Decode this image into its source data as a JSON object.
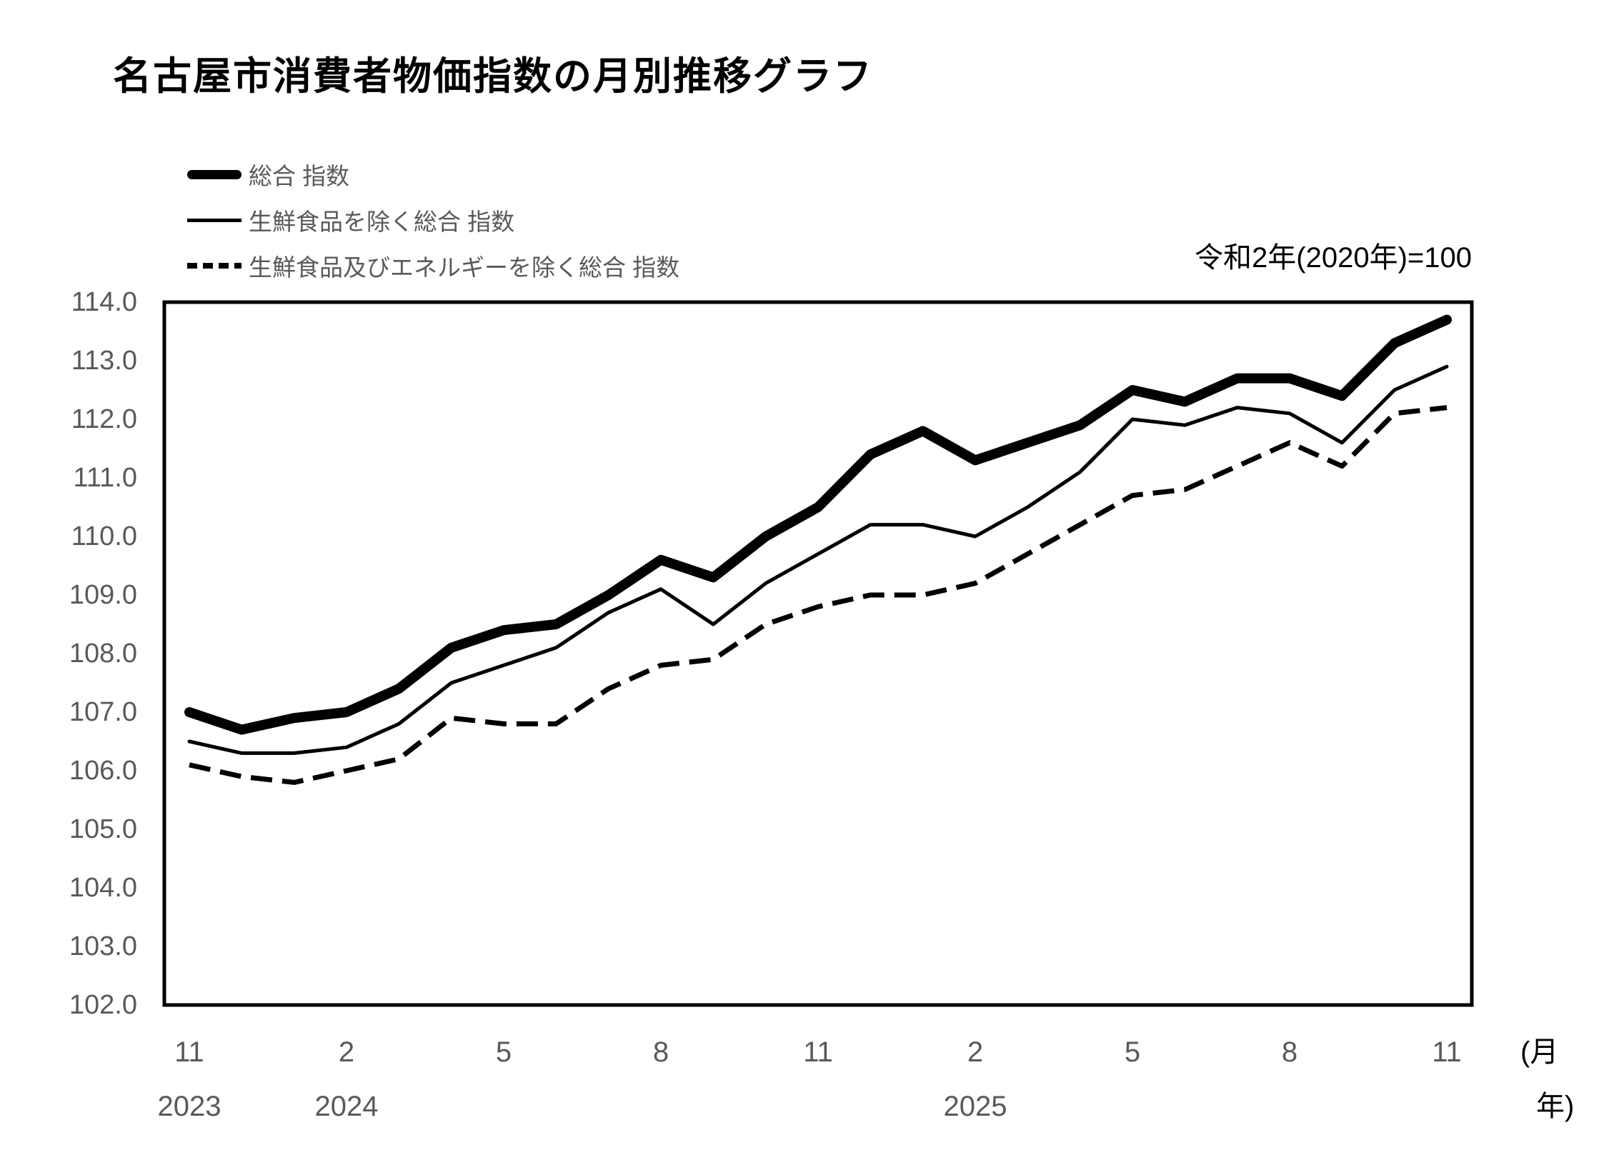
{
  "chart_data": {
    "type": "line",
    "title": "名古屋市消費者物価指数の月別推移グラフ",
    "base_index_note": "令和2年(2020年)=100",
    "x_months": [
      "2023-11",
      "2023-12",
      "2024-01",
      "2024-02",
      "2024-03",
      "2024-04",
      "2024-05",
      "2024-06",
      "2024-07",
      "2024-08",
      "2024-09",
      "2024-10",
      "2024-11",
      "2024-12",
      "2025-01",
      "2025-02",
      "2025-03",
      "2025-04",
      "2025-05",
      "2025-06",
      "2025-07",
      "2025-08",
      "2025-09",
      "2025-10",
      "2025-11"
    ],
    "series": [
      {
        "name": "総合 指数",
        "style": "thick",
        "values": [
          107.0,
          106.7,
          106.9,
          107.0,
          107.4,
          108.1,
          108.4,
          108.5,
          109.0,
          109.6,
          109.3,
          110.0,
          110.5,
          111.4,
          111.8,
          111.3,
          111.6,
          111.9,
          112.5,
          112.3,
          112.7,
          112.7,
          112.4,
          113.3,
          113.7
        ]
      },
      {
        "name": "生鮮食品を除く総合 指数",
        "style": "thin",
        "values": [
          106.5,
          106.3,
          106.3,
          106.4,
          106.8,
          107.5,
          107.8,
          108.1,
          108.7,
          109.1,
          108.5,
          109.2,
          109.7,
          110.2,
          110.2,
          110.0,
          110.5,
          111.1,
          112.0,
          111.9,
          112.2,
          112.1,
          111.6,
          112.5,
          112.9
        ]
      },
      {
        "name": "生鮮食品及びエネルギーを除く総合 指数",
        "style": "dashed",
        "values": [
          106.1,
          105.9,
          105.8,
          106.0,
          106.2,
          106.9,
          106.8,
          106.8,
          107.4,
          107.8,
          107.9,
          108.5,
          108.8,
          109.0,
          109.0,
          109.2,
          109.7,
          110.2,
          110.7,
          110.8,
          111.2,
          111.6,
          111.2,
          112.1,
          112.2
        ]
      }
    ],
    "ylim": [
      102.0,
      114.0
    ],
    "ytick_step": 1.0,
    "yticks": [
      "114.0",
      "113.0",
      "112.0",
      "111.0",
      "110.0",
      "109.0",
      "108.0",
      "107.0",
      "106.0",
      "105.0",
      "104.0",
      "103.0",
      "102.0"
    ],
    "xticks": [
      {
        "month": "11",
        "year": "2023",
        "index": 0
      },
      {
        "month": "2",
        "year": "2024",
        "index": 3
      },
      {
        "month": "5",
        "index": 6
      },
      {
        "month": "8",
        "index": 9
      },
      {
        "month": "11",
        "index": 12
      },
      {
        "month": "2",
        "year": "2025",
        "index": 15
      },
      {
        "month": "5",
        "index": 18
      },
      {
        "month": "8",
        "index": 21
      },
      {
        "month": "11",
        "index": 24
      }
    ],
    "x_unit_labels": {
      "month": "(月",
      "year": "年)"
    },
    "grid": false,
    "legend_position": "top-left",
    "colors": {
      "line": "#000000",
      "tick_text": "#595959",
      "title_text": "#000000"
    }
  }
}
